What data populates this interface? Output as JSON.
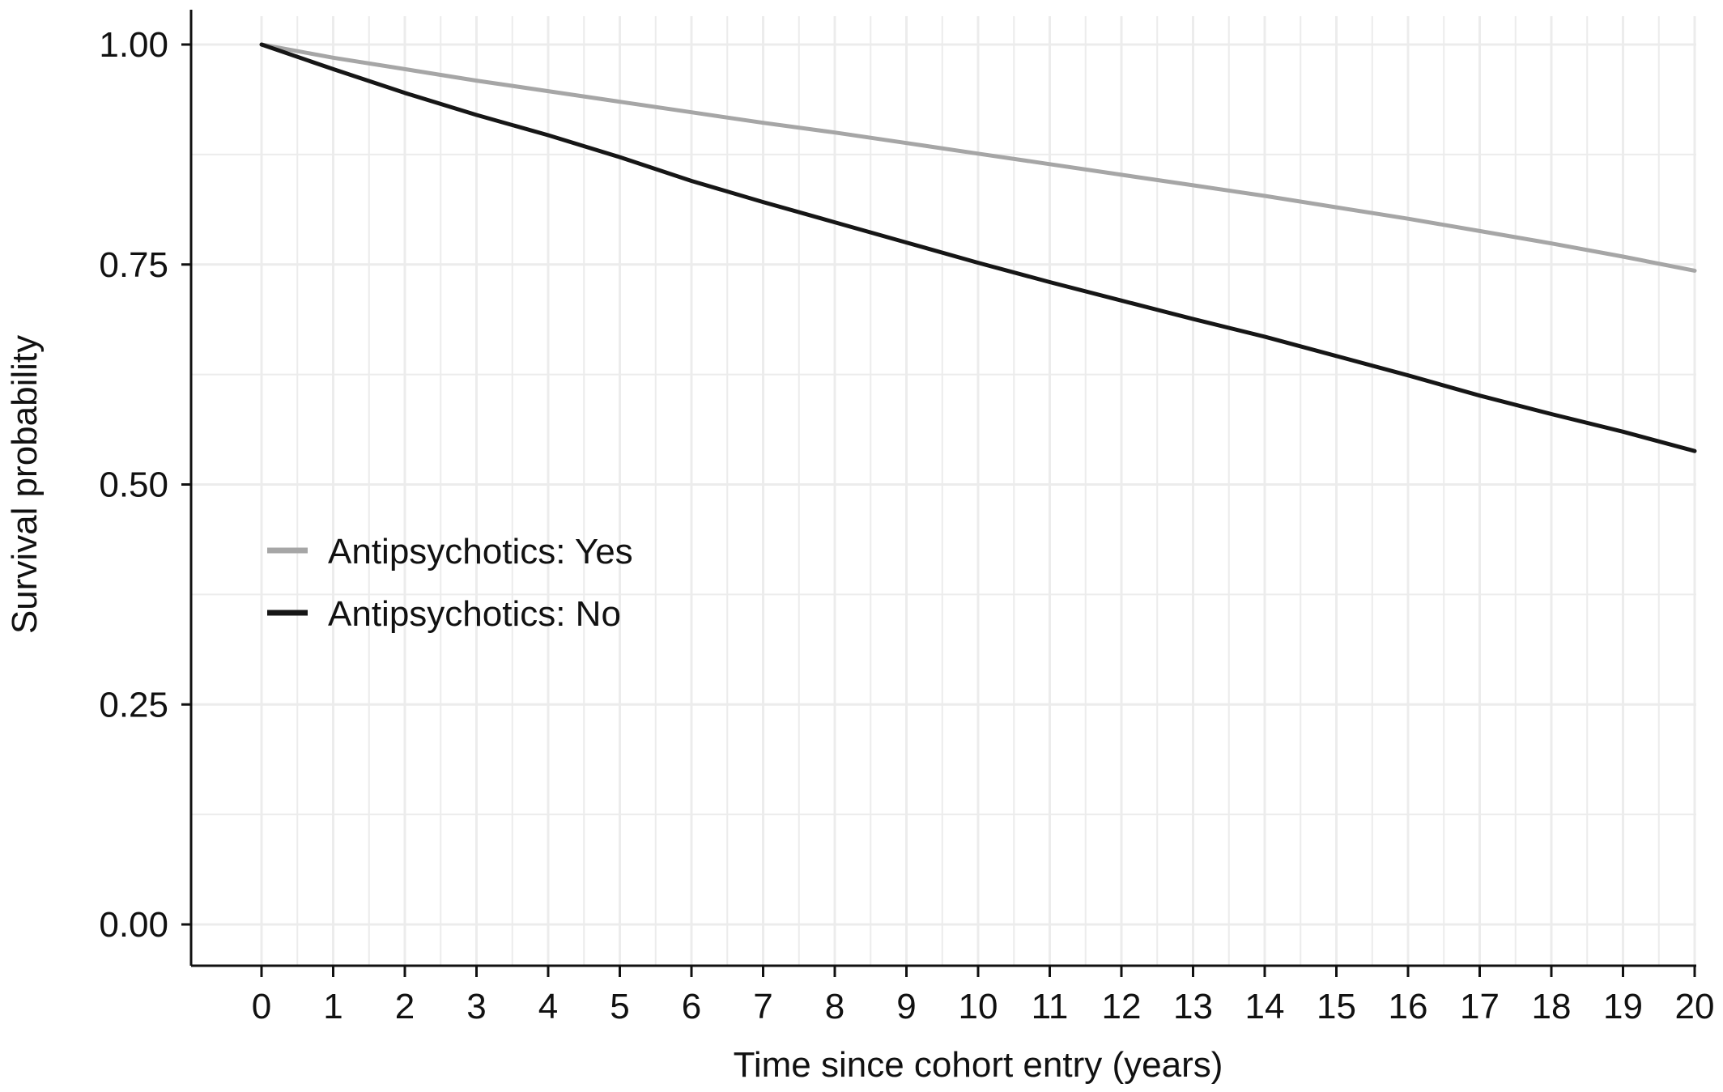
{
  "chart_data": {
    "type": "line",
    "title": "",
    "xlabel": "Time since cohort entry (years)",
    "ylabel": "Survival probability",
    "xlim": [
      0,
      20
    ],
    "ylim": [
      0,
      1
    ],
    "x_ticks": [
      "0",
      "1",
      "2",
      "3",
      "4",
      "5",
      "6",
      "7",
      "8",
      "9",
      "10",
      "11",
      "12",
      "13",
      "14",
      "15",
      "16",
      "17",
      "18",
      "19",
      "20"
    ],
    "y_ticks": [
      "0.00",
      "0.25",
      "0.50",
      "0.75",
      "1.00"
    ],
    "grid": true,
    "legend_position": "middle-left",
    "series": [
      {
        "name": "Antipsychotics: Yes",
        "color": "#a6a6a6",
        "x": [
          0,
          1,
          2,
          3,
          4,
          5,
          6,
          7,
          8,
          9,
          10,
          11,
          12,
          13,
          14,
          15,
          16,
          17,
          18,
          19,
          20
        ],
        "values": [
          1.0,
          0.985,
          0.972,
          0.959,
          0.947,
          0.935,
          0.923,
          0.911,
          0.9,
          0.888,
          0.876,
          0.864,
          0.852,
          0.84,
          0.828,
          0.815,
          0.802,
          0.788,
          0.774,
          0.759,
          0.743
        ]
      },
      {
        "name": "Antipsychotics: No",
        "color": "#161616",
        "x": [
          0,
          1,
          2,
          3,
          4,
          5,
          6,
          7,
          8,
          9,
          10,
          11,
          12,
          13,
          14,
          15,
          16,
          17,
          18,
          19,
          20
        ],
        "values": [
          1.0,
          0.972,
          0.945,
          0.92,
          0.897,
          0.872,
          0.845,
          0.821,
          0.798,
          0.775,
          0.752,
          0.73,
          0.709,
          0.688,
          0.668,
          0.646,
          0.624,
          0.601,
          0.58,
          0.56,
          0.538
        ]
      }
    ]
  }
}
